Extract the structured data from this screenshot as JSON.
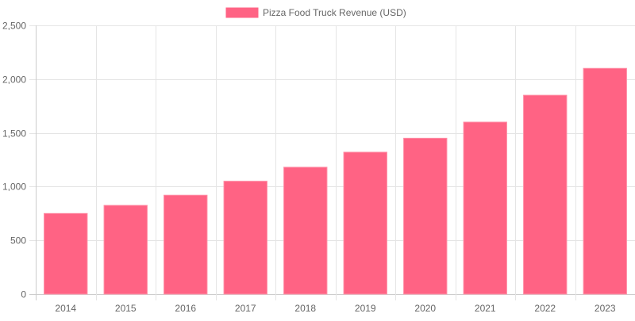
{
  "chart_data": {
    "type": "bar",
    "categories": [
      "2014",
      "2015",
      "2016",
      "2017",
      "2018",
      "2019",
      "2020",
      "2021",
      "2022",
      "2023"
    ],
    "series": [
      {
        "name": "Pizza Food Truck Revenue (USD)",
        "values": [
          750,
          825,
          920,
          1050,
          1180,
          1320,
          1450,
          1600,
          1850,
          2100
        ],
        "color": "#ff6384"
      }
    ],
    "ylim": [
      0,
      2500
    ],
    "yticks": [
      "0",
      "500",
      "1,000",
      "1,500",
      "2,000",
      "2,500"
    ],
    "ytick_values": [
      0,
      500,
      1000,
      1500,
      2000,
      2500
    ],
    "grid": true,
    "legend": "top"
  }
}
